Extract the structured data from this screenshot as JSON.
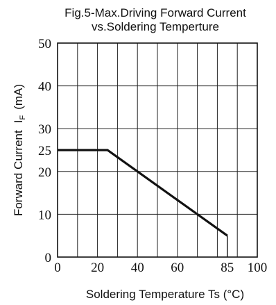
{
  "chart_data": {
    "type": "line",
    "title_lines": [
      "Fig.5-Max.Driving Forward Current",
      "vs.Soldering Temperture"
    ],
    "xlabel": "Soldering Temperature Ts (°C)",
    "ylabel_main": "Forward Current",
    "ylabel_symbol": "I",
    "ylabel_subscript": "F",
    "ylabel_unit": "(mA)",
    "xlim": [
      0,
      100
    ],
    "ylim": [
      0,
      50
    ],
    "grid": true,
    "x_ticks": [
      {
        "value": 0,
        "label": "0"
      },
      {
        "value": 20,
        "label": "20"
      },
      {
        "value": 40,
        "label": "40"
      },
      {
        "value": 60,
        "label": "60"
      },
      {
        "value": 85,
        "label": "85"
      },
      {
        "value": 100,
        "label": "100"
      }
    ],
    "y_ticks": [
      {
        "value": 0,
        "label": "0"
      },
      {
        "value": 10,
        "label": "10"
      },
      {
        "value": 20,
        "label": "20"
      },
      {
        "value": 25,
        "label": "25"
      },
      {
        "value": 30,
        "label": "30"
      },
      {
        "value": 40,
        "label": "40"
      },
      {
        "value": 50,
        "label": "50"
      }
    ],
    "vertical_grid_x": [
      0,
      10,
      20,
      30,
      40,
      50,
      60,
      70,
      80,
      90,
      100
    ],
    "horizontal_grid_y": [
      0,
      10,
      20,
      30,
      40,
      50
    ],
    "series": [
      {
        "x": [
          0,
          25,
          85
        ],
        "y": [
          25,
          25,
          5
        ],
        "color": "#111111"
      }
    ],
    "cutoff_x": 85
  }
}
